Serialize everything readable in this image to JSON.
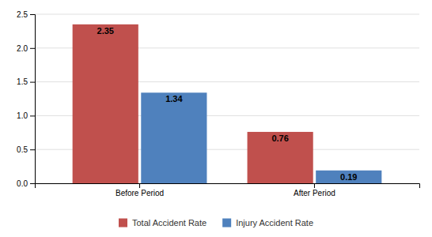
{
  "chart_data": {
    "type": "bar",
    "categories": [
      "Before Period",
      "After Period"
    ],
    "series": [
      {
        "name": "Total Accident Rate",
        "color": "#c0504d",
        "values": [
          2.35,
          0.76
        ]
      },
      {
        "name": "Injury Accident Rate",
        "color": "#4f81bd",
        "values": [
          1.34,
          0.19
        ]
      }
    ],
    "ylim": [
      0,
      2.5
    ],
    "yticks": [
      {
        "value": 0,
        "label": "0.0"
      },
      0.5,
      {
        "value": 1,
        "label": "1.0"
      },
      1.5,
      {
        "value": 2,
        "label": "2.0"
      },
      2.5
    ],
    "grid": true,
    "legend": "bottom",
    "data_labels": true
  }
}
